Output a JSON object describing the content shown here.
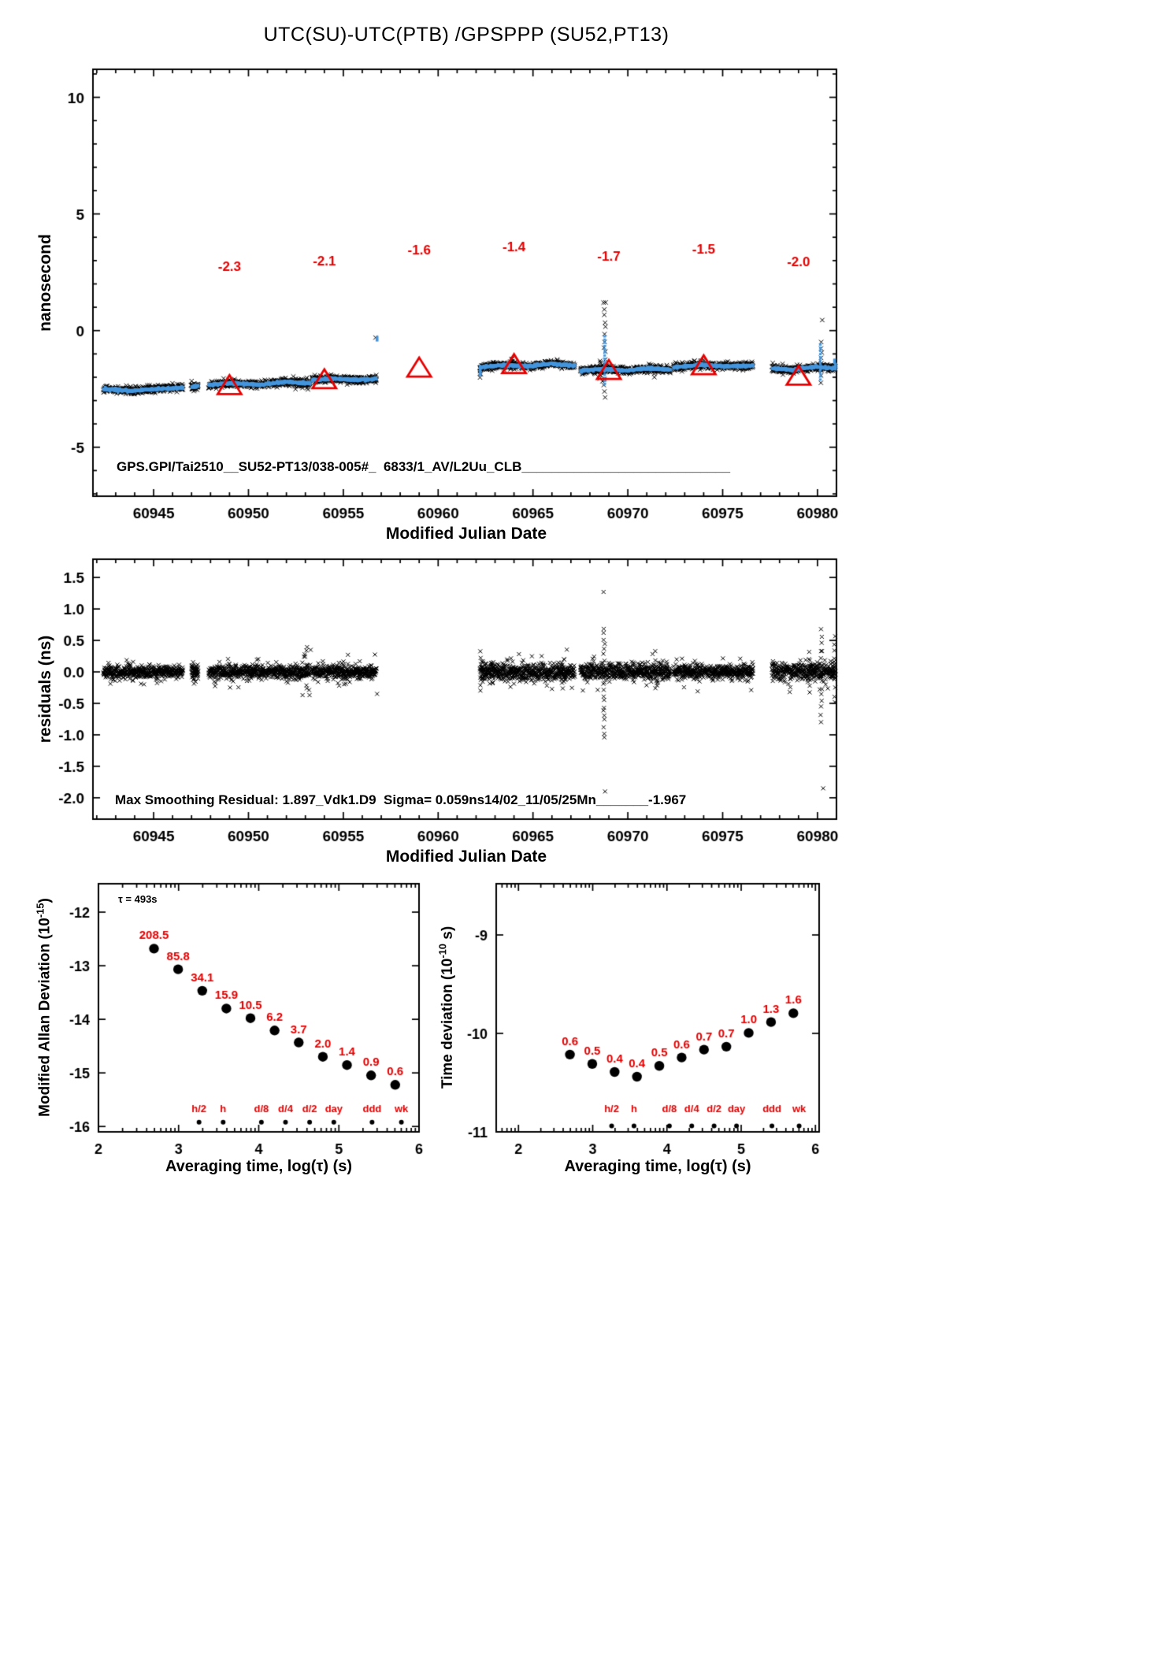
{
  "title": "UTC(SU)-UTC(PTB)  /GPSPPP  (SU52,PT13)",
  "colors": {
    "black": "#000000",
    "red": "#e60000",
    "blue": "#4596dd"
  },
  "chart_data": [
    {
      "id": "phase",
      "type": "scatter",
      "xlabel": "Modified Julian Date",
      "ylabel": {
        "pre": "nanosecond",
        "sup": "",
        "post": ""
      },
      "xlim": [
        60941.8,
        60981.0
      ],
      "ylim": [
        -7.1,
        11.2
      ],
      "xticks": [
        60945,
        60950,
        60955,
        60960,
        60965,
        60970,
        60975,
        60980
      ],
      "yticks": [
        -5,
        0,
        5,
        10
      ],
      "ytick_decimals": 0,
      "annotation": "GPS.GPI/Tai2510__SU52-PT13/038-005#_  6833/1_AV/L2Uu_CLB____________________________",
      "segments": [
        {
          "x0": 60942.35,
          "x1": 60946.55,
          "levels": [
            -2.5,
            -2.58,
            -2.5,
            -2.45
          ],
          "n": 400
        },
        {
          "x0": 60947.0,
          "x1": 60947.35,
          "levels": [
            -2.42,
            -2.36
          ],
          "n": 45
        },
        {
          "x0": 60947.9,
          "x1": 60953.25,
          "levels": [
            -2.33,
            -2.25,
            -2.32,
            -2.2,
            -2.26
          ],
          "n": 510
        },
        {
          "x0": 60953.35,
          "x1": 60956.75,
          "levels": [
            -2.12,
            -2.05,
            -2.12,
            -2.07
          ],
          "n": 330
        },
        {
          "x0": 60962.2,
          "x1": 60967.2,
          "levels": [
            -1.58,
            -1.48,
            -1.53,
            -1.42,
            -1.5
          ],
          "n": 480
        },
        {
          "x0": 60967.5,
          "x1": 60972.25,
          "levels": [
            -1.72,
            -1.64,
            -1.72,
            -1.62,
            -1.68
          ],
          "n": 455
        },
        {
          "x0": 60972.4,
          "x1": 60976.6,
          "levels": [
            -1.57,
            -1.48,
            -1.53,
            -1.5
          ],
          "n": 400
        },
        {
          "x0": 60977.6,
          "x1": 60980.95,
          "levels": [
            -1.62,
            -1.68,
            -1.55,
            -1.62
          ],
          "n": 320
        }
      ],
      "black_clusters": [
        {
          "x": 60947.05,
          "xs": 0.12,
          "y0": -2.55,
          "y1": -2.2,
          "n": 10
        },
        {
          "x": 60952.75,
          "xs": 0.45,
          "y0": -2.52,
          "y1": -1.95,
          "n": 16
        },
        {
          "x": 60962.25,
          "xs": 0.06,
          "y0": -1.95,
          "y1": -1.55,
          "n": 8
        },
        {
          "x": 60963.9,
          "xs": 0.12,
          "y0": -1.42,
          "y1": -1.25,
          "n": 8
        },
        {
          "x": 60968.78,
          "xs": 0.05,
          "y0": -2.9,
          "y1": 1.2,
          "n": 16
        },
        {
          "x": 60968.6,
          "xs": 0.15,
          "y0": -2.1,
          "y1": -1.3,
          "n": 10
        },
        {
          "x": 60971.4,
          "xs": 0.1,
          "y0": -1.95,
          "y1": -1.45,
          "n": 8
        },
        {
          "x": 60980.2,
          "xs": 0.04,
          "y0": -2.2,
          "y1": -0.5,
          "n": 8
        }
      ],
      "blue_columns": [
        {
          "x": 60962.22,
          "y0": -1.9,
          "y1": -1.58,
          "n": 6
        },
        {
          "x": 60968.78,
          "y0": -2.3,
          "y1": -0.25,
          "n": 16
        },
        {
          "x": 60980.15,
          "y0": -2.1,
          "y1": -0.6,
          "n": 12
        }
      ],
      "blue_points": [
        [
          60956.78,
          -0.35
        ],
        [
          60980.9,
          -1.32
        ],
        [
          60980.95,
          -1.5
        ]
      ],
      "black_points": [
        [
          60980.25,
          0.45
        ],
        [
          60968.72,
          1.2
        ],
        [
          60956.7,
          -0.3
        ]
      ],
      "triangles": [
        [
          60949,
          -2.35
        ],
        [
          60954,
          -2.1
        ],
        [
          60959,
          -1.6
        ],
        [
          60964,
          -1.45
        ],
        [
          60969,
          -1.7
        ],
        [
          60974,
          -1.5
        ],
        [
          60979,
          -1.95
        ]
      ],
      "value_labels": [
        {
          "x": 60949,
          "y": 2.55,
          "text": "-2.3"
        },
        {
          "x": 60954,
          "y": 2.8,
          "text": "-2.1"
        },
        {
          "x": 60959,
          "y": 3.25,
          "text": "-1.6"
        },
        {
          "x": 60964,
          "y": 3.4,
          "text": "-1.4"
        },
        {
          "x": 60969,
          "y": 3.0,
          "text": "-1.7"
        },
        {
          "x": 60974,
          "y": 3.3,
          "text": "-1.5"
        },
        {
          "x": 60979,
          "y": 2.75,
          "text": "-2.0"
        }
      ]
    },
    {
      "id": "residuals",
      "type": "scatter",
      "xlabel": "Modified Julian Date",
      "ylabel": {
        "pre": "residuals (ns)",
        "sup": "",
        "post": ""
      },
      "xlim": [
        60941.8,
        60981.0
      ],
      "ylim": [
        -2.34,
        1.79
      ],
      "xticks": [
        60945,
        60950,
        60955,
        60960,
        60965,
        60970,
        60975,
        60980
      ],
      "yticks": [
        -2.0,
        -1.5,
        -1.0,
        -0.5,
        0.0,
        0.5,
        1.0,
        1.5
      ],
      "ytick_decimals": 1,
      "annotation": "Max Smoothing Residual: 1.897_Vdk1.D9  Sigma= 0.059ns14/02_11/05/25Mn_______-1.967",
      "segments": [
        {
          "x0": 60942.35,
          "x1": 60946.55,
          "spread": 0.045,
          "n": 400
        },
        {
          "x0": 60947.0,
          "x1": 60947.35,
          "spread": 0.06,
          "n": 45
        },
        {
          "x0": 60947.9,
          "x1": 60953.25,
          "spread": 0.05,
          "n": 510
        },
        {
          "x0": 60953.35,
          "x1": 60956.75,
          "spread": 0.05,
          "n": 330
        },
        {
          "x0": 60962.2,
          "x1": 60967.2,
          "spread": 0.06,
          "n": 480
        },
        {
          "x0": 60967.5,
          "x1": 60972.25,
          "spread": 0.06,
          "n": 455
        },
        {
          "x0": 60972.4,
          "x1": 60976.6,
          "spread": 0.05,
          "n": 400
        },
        {
          "x0": 60977.6,
          "x1": 60980.95,
          "spread": 0.07,
          "n": 320
        }
      ],
      "black_clusters": [
        {
          "x": 60947.1,
          "xs": 0.12,
          "y0": -0.16,
          "y1": 0.16,
          "n": 12
        },
        {
          "x": 60952.9,
          "xs": 0.3,
          "y0": -0.36,
          "y1": 0.38,
          "n": 14
        },
        {
          "x": 60962.3,
          "xs": 0.08,
          "y0": -0.32,
          "y1": 0.32,
          "n": 10
        },
        {
          "x": 60963.9,
          "xs": 0.1,
          "y0": -0.22,
          "y1": 0.22,
          "n": 8
        },
        {
          "x": 60966.6,
          "xs": 0.1,
          "y0": -0.25,
          "y1": 0.25,
          "n": 8
        },
        {
          "x": 60968.75,
          "xs": 0.04,
          "y0": -1.05,
          "y1": 0.7,
          "n": 22
        },
        {
          "x": 60971.5,
          "xs": 0.07,
          "y0": -0.27,
          "y1": 0.27,
          "n": 8
        },
        {
          "x": 60979.55,
          "xs": 0.1,
          "y0": -0.3,
          "y1": 0.3,
          "n": 8
        },
        {
          "x": 60980.2,
          "xs": 0.04,
          "y0": -0.8,
          "y1": 0.65,
          "n": 14
        },
        {
          "x": 60980.9,
          "xs": 0.04,
          "y0": -0.5,
          "y1": 0.55,
          "n": 10
        }
      ],
      "black_points": [
        [
          60968.72,
          1.27
        ],
        [
          60968.8,
          -1.9
        ],
        [
          60980.3,
          -1.85
        ],
        [
          60953.28,
          0.35
        ],
        [
          60953.22,
          -0.37
        ],
        [
          60956.78,
          -0.35
        ]
      ]
    },
    {
      "id": "mdev",
      "type": "scatter",
      "xlabel": "Averaging time, log(τ) (s)",
      "ylabel": {
        "pre": "Modified Allan Deviation (10",
        "sup": "-15",
        "post": ")"
      },
      "xlim": [
        2,
        6
      ],
      "ylim": [
        -16.1,
        -11.47
      ],
      "xticks": [
        2,
        3,
        4,
        5,
        6
      ],
      "yticks": [
        -12,
        -13,
        -14,
        -15,
        -16
      ],
      "ytick_decimals": 0,
      "tau_note": "τ = 493s",
      "points_x": [
        2.693,
        2.994,
        3.295,
        3.596,
        3.897,
        4.198,
        4.499,
        4.8,
        5.101,
        5.402,
        5.703
      ],
      "points_y": [
        -12.681,
        -13.067,
        -13.467,
        -13.799,
        -13.979,
        -14.208,
        -14.432,
        -14.699,
        -14.854,
        -15.046,
        -15.222
      ],
      "point_labels": [
        "208.5",
        "85.8",
        "34.1",
        "15.9",
        "10.5",
        "6.2",
        "3.7",
        "2.0",
        "1.4",
        "0.9",
        "0.6"
      ],
      "time_markers": {
        "labels": [
          "h/2",
          "h",
          "d/8",
          "d/4",
          "d/2",
          "day",
          "ddd",
          "wk"
        ],
        "x": [
          3.255,
          3.556,
          4.033,
          4.334,
          4.635,
          4.937,
          5.414,
          5.78
        ],
        "label_y": -15.73,
        "dot_y": -15.92
      }
    },
    {
      "id": "tdev",
      "type": "scatter",
      "xlabel": "Averaging time, log(τ) (s)",
      "ylabel": {
        "pre": "Time deviation (10",
        "sup": "-10",
        "post": " s)"
      },
      "xlim": [
        1.7,
        6.05
      ],
      "ylim": [
        -11.0,
        -8.48
      ],
      "xticks": [
        2,
        3,
        4,
        5,
        6
      ],
      "yticks": [
        -9,
        -10,
        -11
      ],
      "ytick_decimals": 0,
      "points_x": [
        2.693,
        2.994,
        3.295,
        3.596,
        3.897,
        4.198,
        4.499,
        4.8,
        5.101,
        5.402,
        5.703
      ],
      "points_y": [
        -10.215,
        -10.31,
        -10.392,
        -10.44,
        -10.33,
        -10.245,
        -10.165,
        -10.135,
        -9.995,
        -9.885,
        -9.795
      ],
      "point_labels": [
        "0.6",
        "0.5",
        "0.4",
        "0.4",
        "0.5",
        "0.6",
        "0.7",
        "0.7",
        "1.0",
        "1.3",
        "1.6"
      ],
      "time_markers": {
        "labels": [
          "h/2",
          "h",
          "d/8",
          "d/4",
          "d/2",
          "day",
          "ddd",
          "wk"
        ],
        "x": [
          3.255,
          3.556,
          4.033,
          4.334,
          4.635,
          4.937,
          5.414,
          5.78
        ],
        "label_y": -10.8,
        "dot_y": -10.94
      }
    }
  ]
}
